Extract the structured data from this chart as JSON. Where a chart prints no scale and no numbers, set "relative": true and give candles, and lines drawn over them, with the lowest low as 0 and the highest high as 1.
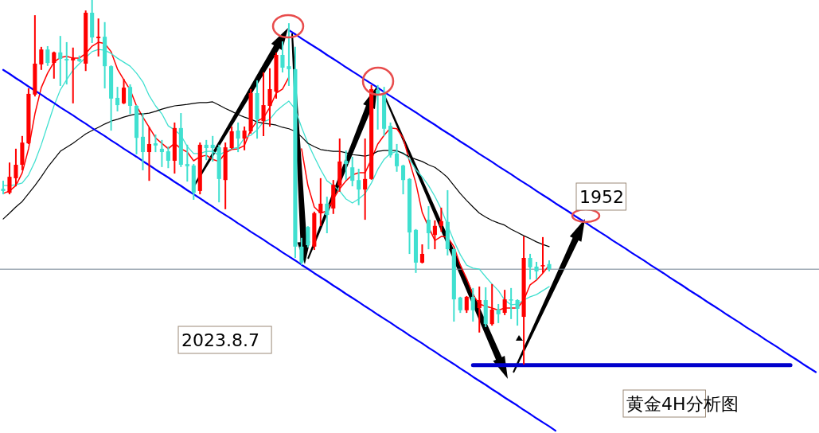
{
  "chart_data": {
    "type": "candlestick",
    "relative": true,
    "title": "黄金4H分析图",
    "annotations": [
      "2023.8.7",
      "1952"
    ],
    "categories": [
      null,
      null,
      null,
      null,
      null,
      null,
      null,
      null,
      null,
      null,
      null,
      null,
      null,
      null,
      null,
      null,
      null,
      null,
      null,
      null,
      null,
      null,
      null,
      null,
      null,
      null,
      null,
      null,
      null,
      null,
      null,
      null,
      null,
      null,
      null,
      null,
      null,
      null,
      null,
      null,
      null,
      null,
      null,
      null,
      null,
      null,
      null,
      null,
      null,
      null,
      null,
      null,
      null,
      null,
      null,
      null,
      null,
      null,
      null,
      null,
      null,
      null,
      null,
      null,
      null,
      null,
      null,
      null,
      null,
      null,
      null,
      null,
      null,
      null,
      null,
      null,
      null,
      null,
      null,
      null,
      null,
      null,
      null,
      null,
      null,
      null,
      null,
      null,
      null,
      null,
      null,
      null,
      null,
      null,
      null,
      null,
      null,
      null,
      null,
      null,
      null,
      null,
      null,
      null,
      null,
      null,
      null,
      null,
      null,
      null,
      null,
      null,
      null,
      null,
      null,
      null,
      null,
      null,
      null,
      null,
      null,
      null,
      null,
      null,
      null,
      null,
      null,
      null,
      null
    ],
    "ohlc": [
      [
        0.481,
        0.501,
        0.468,
        0.475
      ],
      [
        0.47,
        0.551,
        0.468,
        0.514
      ],
      [
        0.51,
        0.589,
        0.49,
        0.547
      ],
      [
        0.547,
        0.624,
        0.534,
        0.608
      ],
      [
        0.606,
        0.755,
        0.606,
        0.742
      ],
      [
        0.74,
        0.956,
        0.737,
        0.825
      ],
      [
        0.823,
        0.869,
        0.81,
        0.864
      ],
      [
        0.864,
        0.871,
        0.821,
        0.827
      ],
      [
        0.827,
        0.856,
        0.786,
        0.856
      ],
      [
        0.856,
        0.899,
        0.766,
        0.838
      ],
      [
        0.838,
        0.882,
        0.77,
        0.834
      ],
      [
        0.834,
        0.867,
        0.718,
        0.84
      ],
      [
        0.838,
        0.845,
        0.832,
        0.832
      ],
      [
        0.825,
        0.969,
        0.807,
        0.965
      ],
      [
        0.965,
        1,
        0.884,
        0.897
      ],
      [
        0.895,
        0.947,
        0.847,
        0.899
      ],
      [
        0.899,
        0.937,
        0.759,
        0.818
      ],
      [
        0.818,
        0.818,
        0.643,
        0.729
      ],
      [
        0.731,
        0.759,
        0.696,
        0.711
      ],
      [
        0.716,
        0.781,
        0.716,
        0.759
      ],
      [
        0.761,
        0.766,
        0.689,
        0.709
      ],
      [
        0.709,
        0.709,
        0.578,
        0.621
      ],
      [
        0.624,
        0.687,
        0.534,
        0.582
      ],
      [
        0.582,
        0.648,
        0.505,
        0.604
      ],
      [
        0.606,
        0.628,
        0.584,
        0.6
      ],
      [
        0.591,
        0.613,
        0.543,
        0.582
      ],
      [
        0.584,
        0.595,
        0.54,
        0.558
      ],
      [
        0.558,
        0.661,
        0.525,
        0.648
      ],
      [
        0.648,
        0.687,
        0.543,
        0.547
      ],
      [
        0.549,
        0.6,
        0.503,
        0.543
      ],
      [
        0.545,
        0.547,
        0.453,
        0.47
      ],
      [
        0.475,
        0.606,
        0.468,
        0.602
      ],
      [
        0.602,
        0.613,
        0.562,
        0.593
      ],
      [
        0.602,
        0.624,
        0.558,
        0.593
      ],
      [
        0.595,
        0.6,
        0.446,
        0.508
      ],
      [
        0.505,
        0.606,
        0.427,
        0.595
      ],
      [
        0.593,
        0.65,
        0.593,
        0.639
      ],
      [
        0.641,
        0.661,
        0.584,
        0.619
      ],
      [
        0.619,
        0.65,
        0.589,
        0.641
      ],
      [
        0.639,
        0.753,
        0.635,
        0.744
      ],
      [
        0.744,
        0.777,
        0.621,
        0.672
      ],
      [
        0.667,
        0.799,
        0.628,
        0.711
      ],
      [
        0.709,
        0.81,
        0.654,
        0.755
      ],
      [
        0.748,
        0.853,
        0.731,
        0.849
      ],
      [
        0.849,
        0.884,
        0.803,
        0.814
      ],
      [
        0.818,
        0.934,
        0.766,
        0.81
      ],
      [
        0.81,
        0.869,
        0.293,
        0.322
      ],
      [
        0.322,
        0.344,
        0.274,
        0.278
      ],
      [
        0.376,
        0.376,
        0.322,
        0.326
      ],
      [
        0.322,
        0.416,
        0.315,
        0.414
      ],
      [
        0.414,
        0.508,
        0.381,
        0.44
      ],
      [
        0.44,
        0.457,
        0.361,
        0.409
      ],
      [
        0.427,
        0.503,
        0.414,
        0.492
      ],
      [
        0.49,
        0.617,
        0.475,
        0.556
      ],
      [
        0.558,
        0.584,
        0.508,
        0.549
      ],
      [
        0.54,
        0.567,
        0.49,
        0.503
      ],
      [
        0.505,
        0.534,
        0.438,
        0.479
      ],
      [
        0.479,
        0.617,
        0.398,
        0.508
      ],
      [
        0.508,
        0.764,
        0.508,
        0.755
      ],
      [
        0.753,
        0.764,
        0.646,
        0.742
      ],
      [
        0.742,
        0.759,
        0.628,
        0.646
      ],
      [
        0.654,
        0.661,
        0.569,
        0.573
      ],
      [
        0.578,
        0.602,
        0.53,
        0.543
      ],
      [
        0.545,
        0.545,
        0.468,
        0.505
      ],
      [
        0.508,
        0.508,
        0.304,
        0.361
      ],
      [
        0.368,
        0.368,
        0.252,
        0.278
      ],
      [
        0.278,
        0.326,
        0.278,
        0.302
      ],
      [
        0.396,
        0.431,
        0.317,
        0.359
      ],
      [
        0.354,
        0.392,
        0.317,
        0.379
      ],
      [
        0.379,
        0.427,
        0.365,
        0.392
      ],
      [
        0.39,
        0.475,
        0.3,
        0.315
      ],
      [
        0.315,
        0.315,
        0.118,
        0.177
      ],
      [
        0.182,
        0.182,
        0.142,
        0.147
      ],
      [
        0.147,
        0.184,
        0.142,
        0.184
      ],
      [
        0.184,
        0.206,
        0.118,
        0.147
      ],
      [
        0.153,
        0.21,
        0.088,
        0.175
      ],
      [
        0.175,
        0.208,
        0.103,
        0.109
      ],
      [
        0.109,
        0.217,
        0.107,
        0.149
      ],
      [
        0.149,
        0.162,
        0.114,
        0.136
      ],
      [
        0.14,
        0.201,
        0.136,
        0.177
      ],
      [
        0.177,
        0.206,
        0.125,
        0.175
      ],
      [
        0.175,
        0.175,
        0.107,
        0.151
      ],
      [
        0.129,
        0.348,
        0,
        0.291
      ],
      [
        0.291,
        0.3,
        0.234,
        0.265
      ],
      [
        0.267,
        0.278,
        0.234,
        0.254
      ],
      [
        0.269,
        0.346,
        0.252,
        0.271
      ],
      [
        0.274,
        0.282,
        0.256,
        0.26
      ],
      null,
      null,
      null,
      null,
      null,
      null,
      null,
      null,
      null,
      null,
      null,
      null,
      null,
      null,
      null,
      null,
      null,
      null,
      null,
      null,
      null,
      null,
      null,
      null,
      null,
      null,
      null,
      null,
      null,
      null,
      null,
      null,
      null,
      null,
      null,
      null,
      null,
      null,
      null,
      null,
      null,
      null
    ],
    "colors": [
      "#40e0d0",
      "#ff0000",
      "#ff0000",
      "#ff0000",
      "#ff0000",
      "#ff0000",
      "#ff0000",
      "#40e0d0",
      "#ff0000",
      "#40e0d0",
      "#40e0d0",
      "#ff0000",
      "#40e0d0",
      "#ff0000",
      "#40e0d0",
      "#ff0000",
      "#40e0d0",
      "#40e0d0",
      "#40e0d0",
      "#ff0000",
      "#40e0d0",
      "#40e0d0",
      "#40e0d0",
      "#ff0000",
      "#40e0d0",
      "#40e0d0",
      "#40e0d0",
      "#ff0000",
      "#40e0d0",
      "#40e0d0",
      "#40e0d0",
      "#ff0000",
      "#40e0d0",
      "#40e0d0",
      "#40e0d0",
      "#ff0000",
      "#ff0000",
      "#40e0d0",
      "#ff0000",
      "#ff0000",
      "#40e0d0",
      "#ff0000",
      "#ff0000",
      "#ff0000",
      "#40e0d0",
      "#40e0d0",
      "#40e0d0",
      "#40e0d0",
      "#40e0d0",
      "#ff0000",
      "#ff0000",
      "#40e0d0",
      "#ff0000",
      "#ff0000",
      "#40e0d0",
      "#40e0d0",
      "#40e0d0",
      "#ff0000",
      "#ff0000",
      "#40e0d0",
      "#40e0d0",
      "#40e0d0",
      "#40e0d0",
      "#40e0d0",
      "#40e0d0",
      "#40e0d0",
      "#ff0000",
      "#40e0d0",
      "#ff0000",
      "#ff0000",
      "#40e0d0",
      "#40e0d0",
      "#40e0d0",
      "#ff0000",
      "#40e0d0",
      "#ff0000",
      "#40e0d0",
      "#ff0000",
      "#40e0d0",
      "#ff0000",
      "#40e0d0",
      "#40e0d0",
      "#ff0000",
      "#40e0d0",
      "#40e0d0",
      "#ff0000",
      "#40e0d0",
      null,
      null,
      null,
      null,
      null,
      null,
      null,
      null,
      null,
      null,
      null,
      null,
      null,
      null,
      null,
      null,
      null,
      null,
      null,
      null,
      null,
      null,
      null,
      null,
      null,
      null,
      null,
      null,
      null,
      null,
      null,
      null,
      null,
      null,
      null,
      null,
      null,
      null,
      null,
      null,
      null,
      null
    ],
    "ref_lines": [
      {
        "axis": "y",
        "value": 0.26,
        "color": "#708090"
      }
    ],
    "series": [
      {
        "type": "line",
        "color": "#ff0000",
        "values": [
          0.468,
          0.475,
          0.49,
          0.525,
          0.591,
          0.687,
          0.759,
          0.799,
          0.829,
          0.842,
          0.845,
          0.84,
          0.84,
          0.853,
          0.873,
          0.884,
          0.88,
          0.858,
          0.81,
          0.781,
          0.753,
          0.709,
          0.678,
          0.65,
          0.621,
          0.606,
          0.591,
          0.606,
          0.591,
          0.582,
          0.558,
          0.569,
          0.573,
          0.562,
          0.556,
          0.58,
          0.589,
          0.591,
          0.6,
          0.643,
          0.667,
          0.676,
          0.705,
          0.744,
          0.755,
          0.788,
          null,
          0.591,
          0.49,
          0.431,
          0.414,
          0.42,
          0.453,
          0.481,
          0.503,
          0.519,
          0.525,
          0.525,
          0.562,
          0.604,
          0.628,
          0.648,
          0.646,
          0.621,
          0.556,
          0.497,
          0.416,
          0.376,
          0.339,
          0.35,
          0.348,
          0.322,
          0.271,
          0.234,
          0.19,
          0.164,
          0.158,
          0.153,
          0.147,
          0.153,
          0.153,
          0.153,
          0.175,
          0.217,
          0.23,
          0.249,
          0.271,
          null,
          null,
          null,
          null,
          null,
          null,
          null,
          null,
          null,
          null,
          null,
          null,
          null,
          null,
          null,
          null,
          null,
          null,
          null,
          null,
          null,
          null,
          null,
          null,
          null,
          null,
          null,
          null,
          null,
          null,
          null,
          null,
          null,
          null,
          null,
          null,
          null,
          null,
          null,
          null,
          null,
          null
        ]
      },
      {
        "type": "line",
        "color": "#40e0d0",
        "values": [
          0.49,
          0.49,
          0.492,
          0.497,
          0.519,
          0.556,
          0.602,
          0.656,
          0.709,
          0.753,
          0.781,
          0.807,
          0.825,
          0.842,
          0.858,
          0.864,
          0.862,
          0.853,
          0.84,
          0.829,
          0.818,
          0.799,
          0.775,
          0.737,
          0.709,
          0.687,
          0.654,
          0.643,
          0.628,
          0.597,
          0.578,
          0.578,
          0.584,
          0.584,
          0.573,
          0.584,
          0.591,
          0.595,
          0.621,
          0.628,
          0.643,
          0.665,
          0.672,
          0.694,
          0.709,
          0.722,
          0.7,
          0.65,
          0.606,
          0.569,
          0.534,
          0.503,
          0.49,
          0.475,
          0.453,
          0.442,
          0.453,
          0.468,
          0.497,
          0.534,
          0.562,
          0.578,
          0.584,
          0.58,
          0.562,
          0.534,
          0.514,
          0.49,
          0.46,
          0.425,
          0.381,
          0.337,
          0.3,
          0.271,
          0.263,
          0.26,
          0.239,
          0.219,
          0.201,
          0.175,
          0.162,
          0.164,
          0.175,
          0.184,
          0.19,
          0.201,
          0.212,
          null,
          null,
          null,
          null,
          null,
          null,
          null,
          null,
          null,
          null,
          null,
          null,
          null,
          null,
          null,
          null,
          null,
          null,
          null,
          null,
          null,
          null,
          null,
          null,
          null,
          null,
          null,
          null,
          null,
          null,
          null,
          null,
          null,
          null,
          null,
          null,
          null,
          null,
          null,
          null,
          null,
          null
        ]
      },
      {
        "type": "line",
        "color": "#000000",
        "values": [
          0.398,
          0.414,
          0.431,
          0.446,
          0.468,
          0.49,
          0.514,
          0.54,
          0.562,
          0.584,
          0.595,
          0.606,
          0.619,
          0.632,
          0.641,
          0.65,
          0.659,
          0.667,
          0.672,
          0.678,
          0.683,
          0.687,
          0.687,
          0.689,
          0.694,
          0.7,
          0.705,
          0.709,
          0.711,
          0.713,
          0.716,
          0.718,
          0.718,
          0.72,
          0.711,
          0.702,
          0.694,
          0.685,
          0.678,
          0.672,
          0.665,
          0.661,
          0.659,
          0.656,
          0.65,
          0.646,
          0.639,
          0.624,
          0.606,
          0.597,
          0.589,
          0.586,
          0.584,
          0.584,
          0.58,
          0.575,
          0.573,
          0.571,
          0.575,
          0.584,
          0.586,
          0.586,
          0.586,
          0.578,
          0.569,
          0.562,
          0.556,
          0.547,
          0.54,
          0.527,
          0.512,
          0.49,
          0.468,
          0.449,
          0.431,
          0.414,
          0.403,
          0.394,
          0.387,
          0.381,
          0.37,
          0.361,
          0.352,
          0.344,
          0.335,
          0.328,
          0.322,
          null,
          null,
          null,
          null,
          null,
          null,
          null,
          null,
          null,
          null,
          null,
          null,
          null,
          null,
          null,
          null,
          null,
          null,
          null,
          null,
          null,
          null,
          null,
          null,
          null,
          null,
          null,
          null,
          null,
          null,
          null,
          null,
          null,
          null,
          null,
          null,
          null,
          null,
          null,
          null,
          null,
          null
        ]
      },
      {
        "type": "line",
        "color": "#0000ff",
        "values": [
          0.808,
          0.797,
          0.785,
          0.774,
          0.762,
          0.751,
          0.74,
          0.728,
          0.717,
          0.705,
          0.694,
          0.683,
          0.671,
          0.66,
          0.648,
          0.637,
          0.626,
          0.614,
          0.603,
          0.591,
          0.58,
          0.569,
          0.557,
          0.546,
          0.534,
          0.523,
          0.512,
          0.5,
          0.489,
          0.477,
          0.466,
          0.455,
          0.443,
          0.432,
          0.42,
          0.409,
          0.398,
          0.386,
          0.375,
          0.363,
          0.352,
          0.341,
          0.329,
          0.318,
          0.306,
          0.295,
          0.284,
          0.272,
          0.261,
          0.249,
          0.238,
          0.227,
          0.215,
          0.204,
          0.192,
          0.181,
          0.17,
          0.158,
          0.147,
          0.135,
          0.124,
          0.113,
          0.101,
          0.09,
          0.078,
          0.067,
          0.056,
          0.044,
          0.033,
          0.021,
          0.01,
          -0.001,
          -0.013,
          -0.024,
          -0.036,
          -0.047,
          -0.058,
          -0.07,
          -0.081,
          -0.093,
          -0.104,
          -0.115,
          -0.127,
          -0.138,
          -0.15,
          -0.161,
          -0.172,
          -0.184,
          null,
          null,
          null,
          null,
          null,
          null,
          null,
          null,
          null,
          null,
          null,
          null,
          null,
          null,
          null,
          null,
          null,
          null,
          null,
          null,
          null,
          null,
          null,
          null,
          null,
          null,
          null,
          null,
          null,
          null,
          null,
          null,
          null,
          null,
          null,
          null,
          null,
          null,
          null,
          null,
          null
        ]
      },
      {
        "type": "line",
        "color": "#0000ff",
        "values": [
          null,
          null,
          null,
          null,
          null,
          null,
          null,
          null,
          null,
          null,
          null,
          null,
          null,
          null,
          null,
          null,
          null,
          null,
          null,
          null,
          null,
          null,
          null,
          null,
          null,
          null,
          null,
          null,
          null,
          null,
          null,
          null,
          null,
          null,
          null,
          null,
          null,
          null,
          null,
          null,
          null,
          null,
          null,
          null,
          null,
          0.917,
          0.906,
          0.894,
          0.883,
          0.872,
          0.861,
          0.849,
          0.838,
          0.827,
          0.815,
          0.804,
          0.793,
          0.781,
          0.77,
          0.759,
          0.747,
          0.736,
          0.725,
          0.713,
          0.702,
          0.691,
          0.679,
          0.668,
          0.657,
          0.645,
          0.634,
          0.623,
          0.611,
          0.6,
          0.589,
          0.577,
          0.566,
          0.555,
          0.543,
          0.532,
          0.521,
          0.509,
          0.498,
          0.487,
          0.475,
          0.464,
          0.453,
          0.441,
          0.43,
          0.419,
          0.407,
          0.396,
          0.385,
          0.373,
          0.362,
          0.351,
          0.339,
          0.328,
          0.317,
          0.305,
          0.294,
          0.283,
          0.271,
          0.26,
          0.249,
          0.237,
          0.226,
          0.215,
          0.203,
          0.192,
          0.181,
          0.169,
          0.158,
          0.147,
          0.135,
          0.124,
          0.113,
          0.101,
          0.09,
          0.079,
          0.067,
          0.056,
          0.045,
          0.033,
          0.022,
          0.011,
          -0.001,
          -0.012,
          -0.023
        ]
      },
      {
        "type": "line",
        "color": "#0000cc",
        "values": [
          null,
          null,
          null,
          null,
          null,
          null,
          null,
          null,
          null,
          null,
          null,
          null,
          null,
          null,
          null,
          null,
          null,
          null,
          null,
          null,
          null,
          null,
          null,
          null,
          null,
          null,
          null,
          null,
          null,
          null,
          null,
          null,
          null,
          null,
          null,
          null,
          null,
          null,
          null,
          null,
          null,
          null,
          null,
          null,
          null,
          null,
          null,
          null,
          null,
          null,
          null,
          null,
          null,
          null,
          null,
          null,
          null,
          null,
          null,
          null,
          null,
          null,
          null,
          null,
          null,
          null,
          null,
          null,
          null,
          null,
          null,
          null,
          null,
          null,
          -0.004,
          -0.004,
          -0.004,
          -0.004,
          -0.004,
          -0.004,
          -0.004,
          -0.004,
          -0.004,
          -0.004,
          -0.004,
          -0.004,
          -0.004,
          -0.004,
          -0.004,
          -0.004,
          -0.004,
          -0.004,
          -0.004,
          -0.004,
          -0.004,
          -0.004,
          -0.004,
          -0.004,
          -0.004,
          -0.004,
          -0.004,
          -0.004,
          -0.004,
          -0.004,
          -0.004,
          -0.004,
          -0.004,
          -0.004,
          -0.004,
          -0.004,
          -0.004,
          -0.004,
          -0.004,
          -0.004,
          -0.004,
          -0.004,
          -0.004,
          -0.004,
          -0.004,
          -0.004,
          -0.004,
          -0.004,
          -0.004,
          -0.004,
          -0.004,
          null,
          null,
          null,
          null
        ]
      }
    ]
  }
}
